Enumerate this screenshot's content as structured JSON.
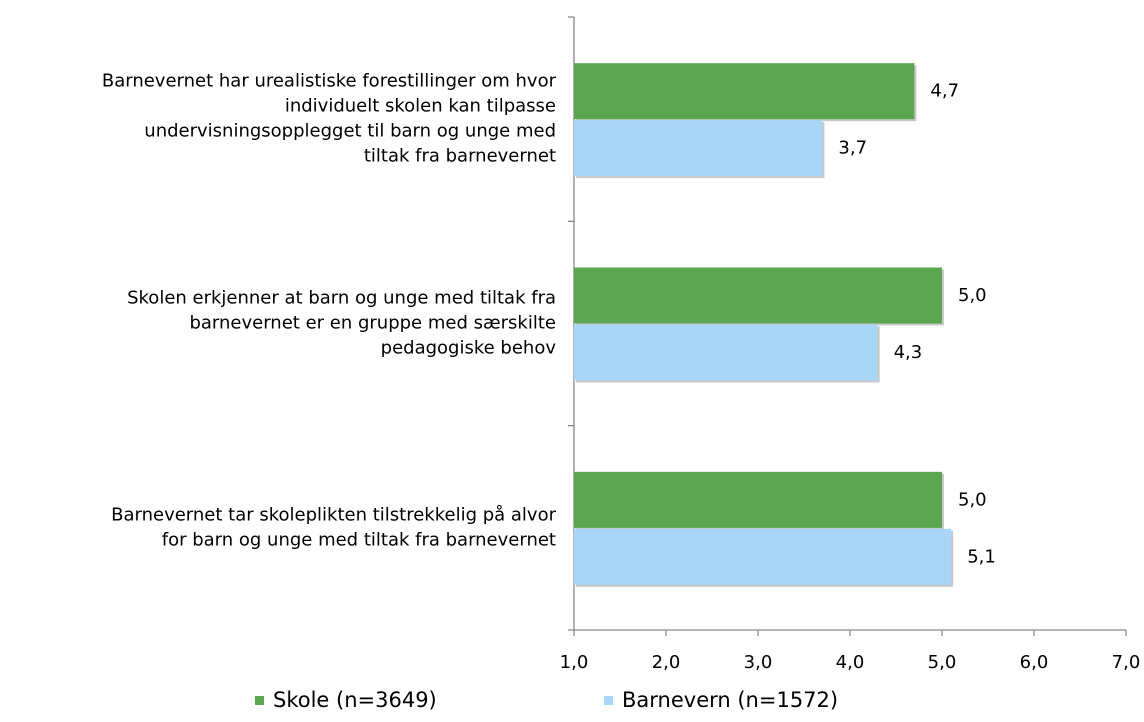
{
  "chart_data": {
    "type": "barh",
    "categories": [
      [
        "Barnevernet har urealistiske forestillinger om hvor",
        "individuelt skolen kan tilpasse",
        "undervisningsopplegget til barn og unge med",
        "tiltak fra barnevernet"
      ],
      [
        "Skolen erkjenner at barn og unge med tiltak fra",
        "barnevernet er en gruppe med særskilte",
        "pedagogiske behov"
      ],
      [
        "Barnevernet tar skoleplikten tilstrekkelig på alvor",
        "for barn og unge med tiltak fra barnevernet"
      ]
    ],
    "series": [
      {
        "name": "Skole (n=3649)",
        "color": "#5ba551",
        "values": [
          4.7,
          5.0,
          5.0
        ],
        "value_labels": [
          "4,7",
          "5,0",
          "5,0"
        ]
      },
      {
        "name": "Barnevern (n=1572)",
        "color": "#a9d5f6",
        "values": [
          3.7,
          4.3,
          5.1
        ],
        "value_labels": [
          "3,7",
          "4,3",
          "5,1"
        ]
      }
    ],
    "xlim": [
      1,
      7
    ],
    "xticks": [
      {
        "value": 1,
        "label": "1,0"
      },
      {
        "value": 2,
        "label": "2,0"
      },
      {
        "value": 3,
        "label": "3,0"
      },
      {
        "value": 4,
        "label": "4,0"
      },
      {
        "value": 5,
        "label": "5,0"
      },
      {
        "value": 6,
        "label": "6,0"
      },
      {
        "value": 7,
        "label": "7,0"
      }
    ],
    "legend": "bottom"
  }
}
